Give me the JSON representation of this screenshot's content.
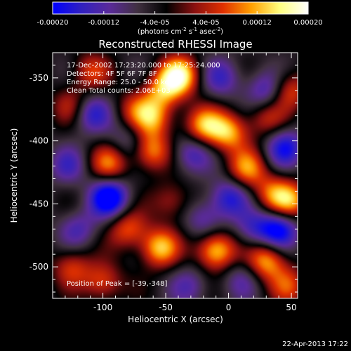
{
  "chart_data": {
    "type": "heatmap",
    "title": "Reconstructed RHESSI Image",
    "xlabel": "Heliocentric X (arcsec)",
    "ylabel": "Heliocentric Y (arcsec)",
    "xlim": [
      -140,
      55
    ],
    "ylim": [
      -525,
      -330
    ],
    "x_ticks": [
      -100,
      -50,
      0,
      50
    ],
    "y_ticks": [
      -350,
      -400,
      -450,
      -500
    ],
    "colorbar": {
      "range": [
        -0.0002,
        0.0002
      ],
      "ticks": [
        {
          "value": -0.0002,
          "label": "-0.00020"
        },
        {
          "value": -0.00012,
          "label": "-0.00012"
        },
        {
          "value": -4e-05,
          "label": "-4.0e-05"
        },
        {
          "value": 4e-05,
          "label": "4.0e-05"
        },
        {
          "value": 0.00012,
          "label": "0.00012"
        },
        {
          "value": 0.0002,
          "label": "0.00020"
        }
      ],
      "units_text": "(photons cm",
      "units_exp1": "-2",
      "units_mid": " s",
      "units_exp2": "-1",
      "units_end": " asec",
      "units_exp3": "-2",
      "units_close": ")",
      "colors": [
        "#0000ff",
        "#3020c0",
        "#5a2a9a",
        "#403040",
        "#000000",
        "#8a1010",
        "#e03000",
        "#ffa000",
        "#ffff80",
        "#ffffff"
      ]
    },
    "annotations": {
      "time": "17-Dec-2002 17:23:20.000 to 17:25:24.000",
      "detectors": "Detectors: 4F 5F 6F 7F 8F",
      "energy": "Energy Range: 25.0 - 50.0 keV",
      "clean": "Clean    Total counts: 2.06E+03",
      "peak": "Position of Peak = [-39,-348]"
    },
    "peak": [
      -39,
      -348
    ],
    "blobs": [
      {
        "x": -39,
        "y": -348,
        "v": 0.0002
      },
      {
        "x": -52,
        "y": -360,
        "v": 0.00013
      },
      {
        "x": -110,
        "y": -345,
        "v": 0.0001
      },
      {
        "x": -125,
        "y": -372,
        "v": 9e-05
      },
      {
        "x": -60,
        "y": -382,
        "v": 0.00014
      },
      {
        "x": -75,
        "y": -375,
        "v": 8e-05
      },
      {
        "x": -20,
        "y": -388,
        "v": 0.00015
      },
      {
        "x": 0,
        "y": -393,
        "v": 0.00016
      },
      {
        "x": 30,
        "y": -382,
        "v": 9e-05
      },
      {
        "x": 48,
        "y": -360,
        "v": 0.00012
      },
      {
        "x": 15,
        "y": -422,
        "v": 0.00014
      },
      {
        "x": -62,
        "y": -408,
        "v": 0.00015
      },
      {
        "x": -95,
        "y": -418,
        "v": 0.00013
      },
      {
        "x": 50,
        "y": -448,
        "v": 0.00014
      },
      {
        "x": 35,
        "y": -442,
        "v": 0.00011
      },
      {
        "x": -45,
        "y": -448,
        "v": 9e-05
      },
      {
        "x": -80,
        "y": -470,
        "v": 0.00012
      },
      {
        "x": -55,
        "y": -485,
        "v": 0.00017
      },
      {
        "x": -10,
        "y": -487,
        "v": 0.00019
      },
      {
        "x": 30,
        "y": -495,
        "v": 0.00016
      },
      {
        "x": -100,
        "y": -512,
        "v": 0.00012
      },
      {
        "x": -125,
        "y": -500,
        "v": 0.0001
      },
      {
        "x": 48,
        "y": -515,
        "v": 0.0001
      },
      {
        "x": -110,
        "y": -378,
        "v": -0.00012
      },
      {
        "x": -128,
        "y": -420,
        "v": -8e-05
      },
      {
        "x": -95,
        "y": -445,
        "v": -0.00019
      },
      {
        "x": -80,
        "y": -400,
        "v": -7e-05
      },
      {
        "x": -30,
        "y": -410,
        "v": -0.0001
      },
      {
        "x": 30,
        "y": -360,
        "v": -0.00011
      },
      {
        "x": 45,
        "y": -405,
        "v": -0.00013
      },
      {
        "x": 0,
        "y": -445,
        "v": -0.00012
      },
      {
        "x": -20,
        "y": -462,
        "v": -8e-05
      },
      {
        "x": 20,
        "y": -470,
        "v": -9e-05
      },
      {
        "x": -30,
        "y": -515,
        "v": -7e-05
      },
      {
        "x": 40,
        "y": -470,
        "v": -0.00016
      },
      {
        "x": -120,
        "y": -470,
        "v": -8e-05
      },
      {
        "x": -5,
        "y": -350,
        "v": -9e-05
      },
      {
        "x": 10,
        "y": -510,
        "v": -6e-05
      }
    ]
  },
  "footer": {
    "timestamp": "22-Apr-2013 17:22"
  }
}
